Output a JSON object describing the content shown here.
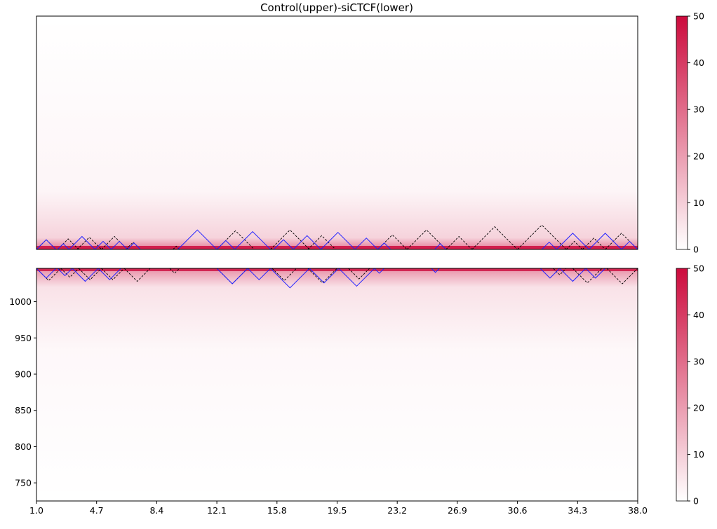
{
  "chart_data": {
    "type": "heatmap",
    "title": "Control(upper)-siCTCF(lower)",
    "x_ticks": [
      "1.0",
      "4.7",
      "8.4",
      "12.1",
      "15.8",
      "19.5",
      "23.2",
      "26.9",
      "30.6",
      "34.3",
      "38.0"
    ],
    "x_range": [
      1.0,
      38.0
    ],
    "lower_y_ticks": [
      "1000",
      "950",
      "900",
      "850",
      "800",
      "750"
    ],
    "lower_y_range": [
      725,
      1046
    ],
    "colorbar_ticks": [
      "0",
      "10",
      "20",
      "30",
      "40",
      "50"
    ],
    "colorbar_range": [
      0,
      50
    ],
    "colors": {
      "high": "#cc0a3c",
      "low": "#ffffff",
      "tad_primary": "#000000",
      "tad_secondary": "#2323ff"
    },
    "upper_domains_black": [
      [
        1.0,
        2.2
      ],
      [
        2.3,
        3.6
      ],
      [
        3.5,
        5.0
      ],
      [
        5.0,
        6.6
      ],
      [
        6.5,
        7.4
      ],
      [
        9.4,
        9.8
      ],
      [
        12.1,
        14.4
      ],
      [
        15.4,
        17.8
      ],
      [
        17.7,
        19.4
      ],
      [
        22.0,
        23.8
      ],
      [
        23.8,
        26.2
      ],
      [
        26.2,
        27.8
      ],
      [
        27.8,
        30.6
      ],
      [
        30.6,
        33.6
      ],
      [
        33.6,
        34.6
      ],
      [
        34.6,
        36.0
      ],
      [
        36.0,
        38.0
      ]
    ],
    "upper_domains_blue": [
      [
        1.0,
        2.2
      ],
      [
        2.3,
        3.0
      ],
      [
        3.0,
        4.6
      ],
      [
        4.6,
        5.6
      ],
      [
        5.6,
        6.6
      ],
      [
        6.6,
        7.4
      ],
      [
        9.7,
        12.1
      ],
      [
        12.1,
        13.2
      ],
      [
        13.2,
        15.4
      ],
      [
        15.6,
        16.8
      ],
      [
        16.8,
        18.5
      ],
      [
        18.5,
        20.6
      ],
      [
        20.6,
        22.0
      ],
      [
        22.0,
        22.8
      ],
      [
        25.5,
        26.2
      ],
      [
        32.1,
        33.0
      ],
      [
        33.0,
        35.0
      ],
      [
        35.0,
        37.0
      ],
      [
        37.0,
        38.0
      ]
    ],
    "lower_domains_black": [
      [
        1.0,
        2.5
      ],
      [
        2.5,
        3.6
      ],
      [
        3.6,
        5.0
      ],
      [
        5.0,
        6.4
      ],
      [
        6.4,
        8.0
      ],
      [
        9.2,
        9.8
      ],
      [
        12.1,
        14.0
      ],
      [
        15.5,
        17.0
      ],
      [
        17.7,
        19.5
      ],
      [
        20.2,
        21.5
      ],
      [
        32.8,
        33.6
      ],
      [
        34.0,
        35.8
      ],
      [
        36.1,
        38.0
      ]
    ],
    "lower_domains_blue": [
      [
        1.0,
        2.2
      ],
      [
        2.3,
        3.2
      ],
      [
        3.2,
        4.8
      ],
      [
        4.8,
        6.2
      ],
      [
        12.1,
        14.0
      ],
      [
        14.0,
        15.4
      ],
      [
        15.4,
        17.8
      ],
      [
        17.8,
        19.6
      ],
      [
        19.6,
        21.8
      ],
      [
        21.8,
        22.4
      ],
      [
        25.3,
        25.8
      ],
      [
        32.0,
        33.2
      ],
      [
        33.2,
        34.8
      ],
      [
        34.8,
        36.0
      ]
    ]
  }
}
